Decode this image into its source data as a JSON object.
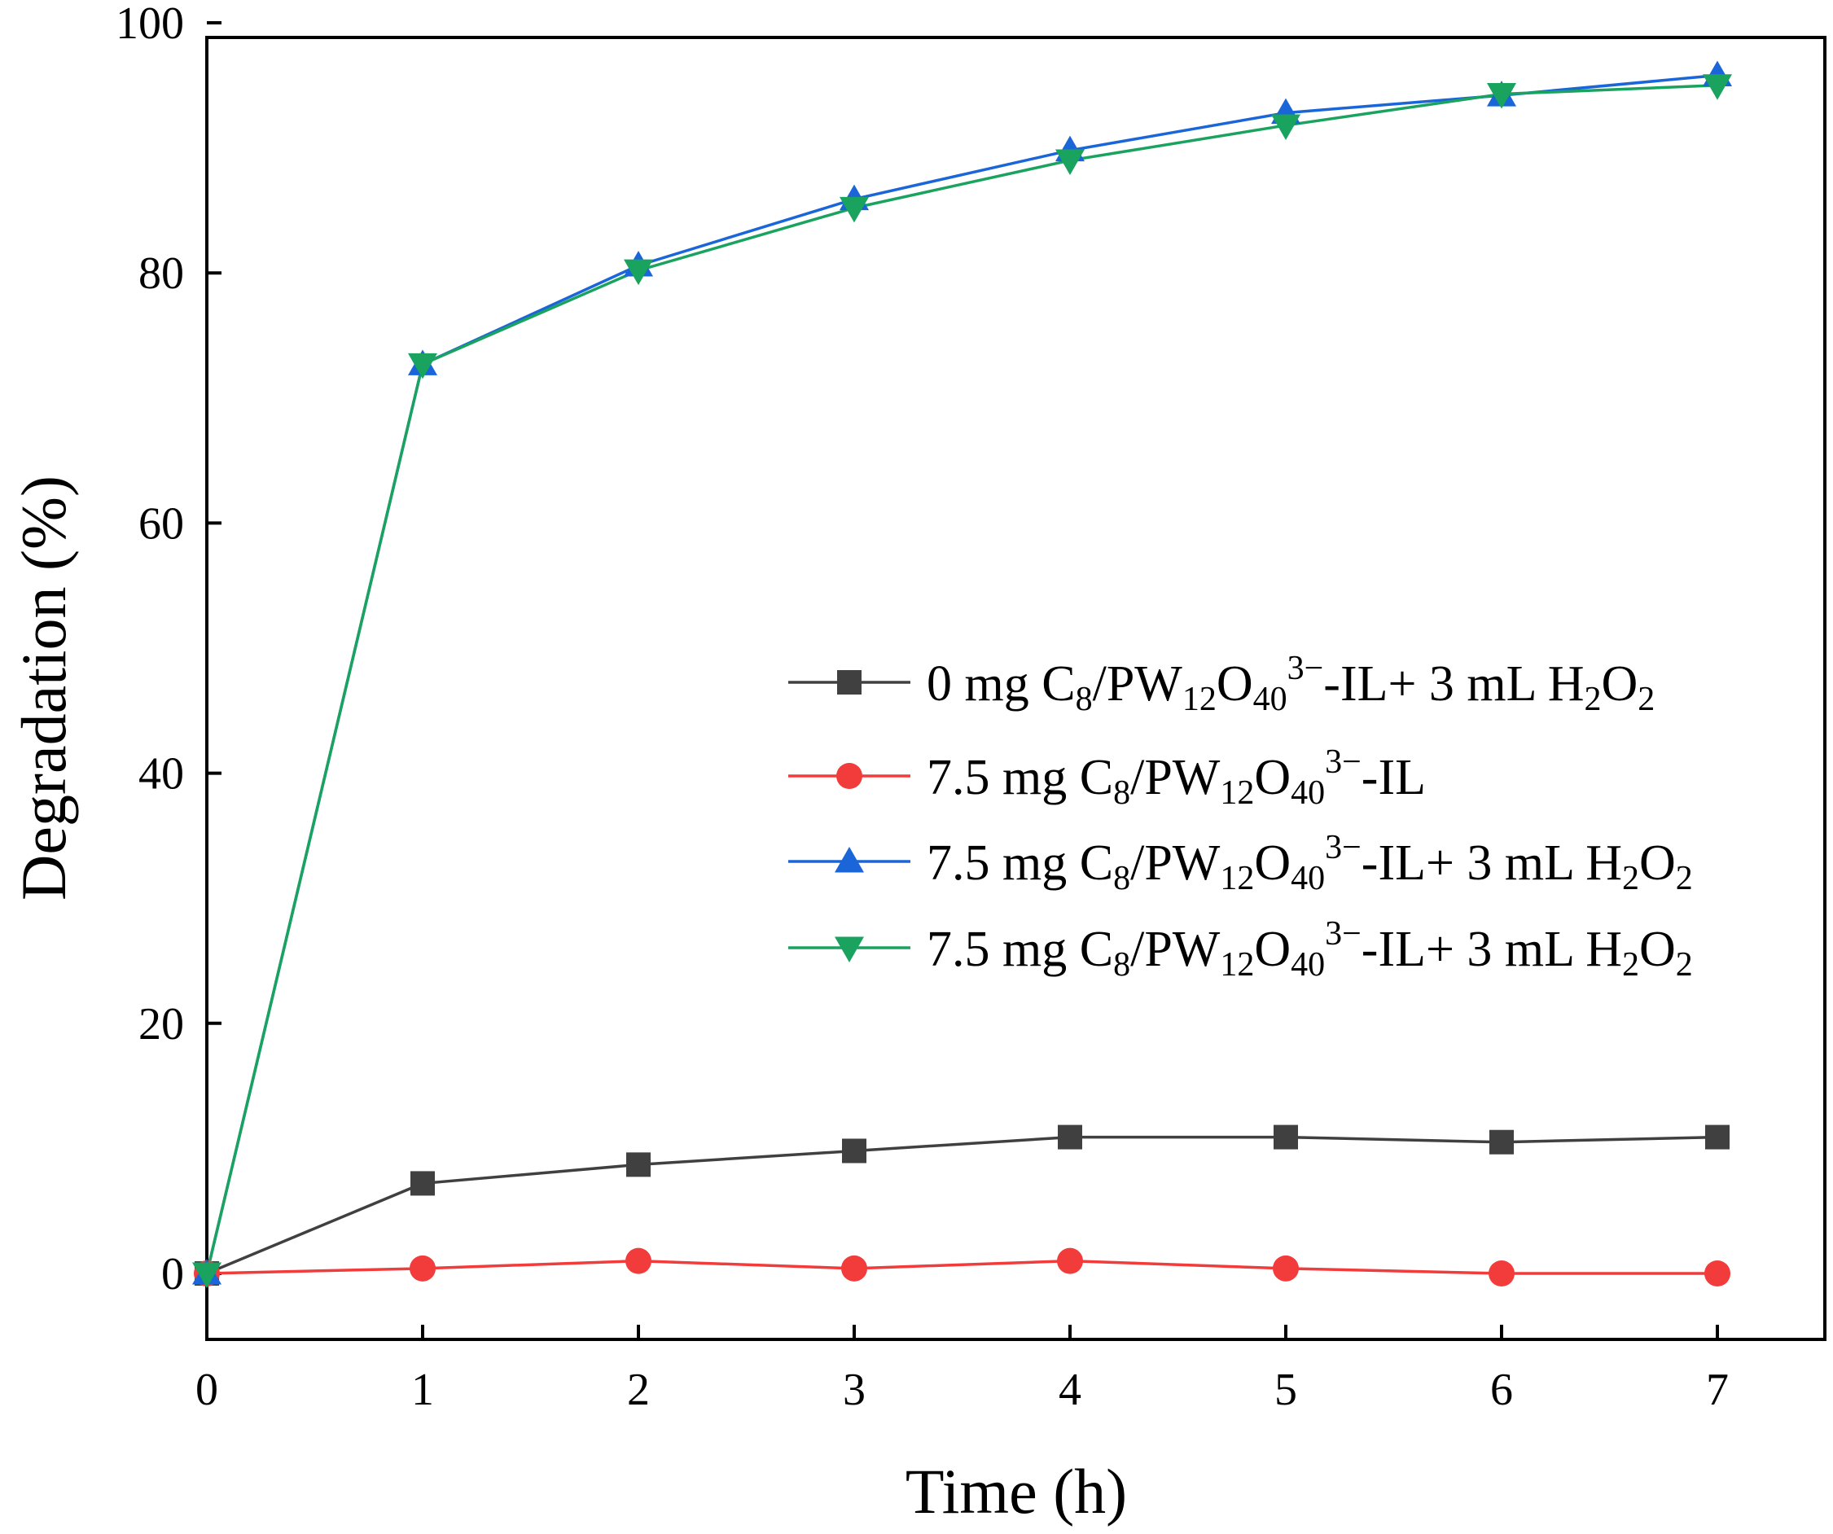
{
  "chart_data": {
    "type": "line",
    "title": "",
    "xlabel": "Time (h)",
    "ylabel": "Degradation (%)",
    "xlim": [
      0,
      7.8
    ],
    "ylim": [
      -5,
      100
    ],
    "xticks": [
      0,
      1,
      2,
      3,
      4,
      5,
      6,
      7
    ],
    "yticks": [
      0,
      20,
      40,
      60,
      80,
      100
    ],
    "x": [
      0,
      1,
      2,
      3,
      4,
      5,
      6,
      7
    ],
    "legend_position": "center-right",
    "series": [
      {
        "name": "0 mg C8/PW12O40 3−-IL+ 3 mL H2O2",
        "label_parts": [
          {
            "t": "0 mg C"
          },
          {
            "t": "8",
            "s": "sub"
          },
          {
            "t": "/PW"
          },
          {
            "t": "12",
            "s": "sub"
          },
          {
            "t": "O"
          },
          {
            "t": "40",
            "s": "sub"
          },
          {
            "t": "3−",
            "s": "sup"
          },
          {
            "t": "-IL+ 3 mL H"
          },
          {
            "t": "2",
            "s": "sub"
          },
          {
            "t": "O"
          },
          {
            "t": "2",
            "s": "sub"
          }
        ],
        "color": "#404040",
        "marker": "square",
        "values": [
          0,
          7.2,
          8.7,
          9.8,
          10.9,
          10.9,
          10.5,
          10.9
        ]
      },
      {
        "name": "7.5 mg C8/PW12O40 3−-IL",
        "label_parts": [
          {
            "t": "7.5 mg C"
          },
          {
            "t": "8",
            "s": "sub"
          },
          {
            "t": "/PW"
          },
          {
            "t": "12",
            "s": "sub"
          },
          {
            "t": "O"
          },
          {
            "t": "40",
            "s": "sub"
          },
          {
            "t": "3−",
            "s": "sup"
          },
          {
            "t": "-IL"
          }
        ],
        "color": "#f23b3b",
        "marker": "circle",
        "values": [
          0,
          0.4,
          1.0,
          0.4,
          1.0,
          0.4,
          0,
          0
        ]
      },
      {
        "name": "7.5 mg C8/PW12O40 3−-IL+ 3 mL H2O2",
        "label_parts": [
          {
            "t": "7.5 mg C"
          },
          {
            "t": "8",
            "s": "sub"
          },
          {
            "t": "/PW"
          },
          {
            "t": "12",
            "s": "sub"
          },
          {
            "t": "O"
          },
          {
            "t": "40",
            "s": "sub"
          },
          {
            "t": "3−",
            "s": "sup"
          },
          {
            "t": "-IL+ 3 mL H"
          },
          {
            "t": "2",
            "s": "sub"
          },
          {
            "t": "O"
          },
          {
            "t": "2",
            "s": "sub"
          }
        ],
        "color": "#1a66d9",
        "marker": "triangle-up",
        "values": [
          0,
          72.7,
          80.6,
          85.9,
          89.8,
          92.8,
          94.2,
          95.8
        ]
      },
      {
        "name": "7.5 mg C8/PW12O40 3−-IL+ 3 mL H2O2",
        "label_parts": [
          {
            "t": "7.5 mg C"
          },
          {
            "t": "8",
            "s": "sub"
          },
          {
            "t": "/PW"
          },
          {
            "t": "12",
            "s": "sub"
          },
          {
            "t": "O"
          },
          {
            "t": "40",
            "s": "sub"
          },
          {
            "t": "3−",
            "s": "sup"
          },
          {
            "t": "-IL+ 3 mL H"
          },
          {
            "t": "2",
            "s": "sub"
          },
          {
            "t": "O"
          },
          {
            "t": "2",
            "s": "sub"
          }
        ],
        "color": "#19a35f",
        "marker": "triangle-down",
        "values": [
          0,
          72.7,
          80.2,
          85.2,
          89.0,
          91.8,
          94.3,
          95.0
        ]
      }
    ]
  }
}
